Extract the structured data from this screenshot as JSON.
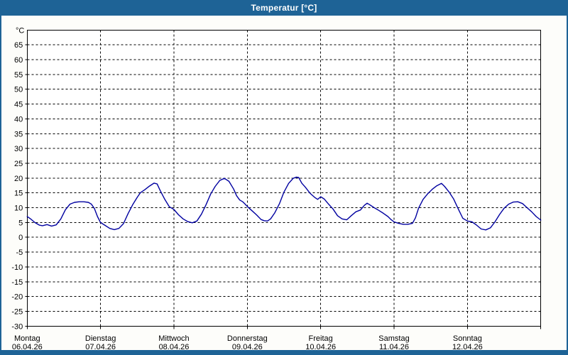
{
  "window": {
    "title": "Temperatur [°C]"
  },
  "colors": {
    "frame": "#1E6396",
    "titlebar": "#1E6396",
    "title_text": "#FFFFFF",
    "window_bg": "#FDFDFA",
    "plot_bg": "#FFFFFF",
    "grid": "#000000",
    "axis": "#000000",
    "line": "#0000A0",
    "label_text": "#000000"
  },
  "chart_data": {
    "type": "line",
    "title": "Temperatur [°C]",
    "ylabel": "°C",
    "xlabel": "",
    "ylim": [
      -30,
      70
    ],
    "yticks": [
      65,
      60,
      55,
      50,
      45,
      40,
      35,
      30,
      25,
      20,
      15,
      10,
      5,
      0,
      -5,
      -10,
      -15,
      -20,
      -25,
      -30
    ],
    "grid": "dashed-horizontal-every-5C-and-vertical-at-day-boundaries",
    "legend": "none",
    "x_days": [
      {
        "name": "Montag",
        "date": "06.04.26"
      },
      {
        "name": "Dienstag",
        "date": "07.04.26"
      },
      {
        "name": "Mittwoch",
        "date": "08.04.26"
      },
      {
        "name": "Donnerstag",
        "date": "09.04.26"
      },
      {
        "name": "Freitag",
        "date": "10.04.26"
      },
      {
        "name": "Samstag",
        "date": "11.04.26"
      },
      {
        "name": "Sonntag",
        "date": "12.04.26"
      }
    ],
    "x_unit": "hours-from-monday-00:00",
    "series": [
      {
        "name": "Temperatur",
        "color": "#0000A0",
        "points": [
          [
            0,
            7.0
          ],
          [
            1,
            6.3
          ],
          [
            2.5,
            5.0
          ],
          [
            4,
            4.1
          ],
          [
            5,
            3.9
          ],
          [
            6.5,
            4.3
          ],
          [
            8,
            3.8
          ],
          [
            9.5,
            4.2
          ],
          [
            11,
            6.2
          ],
          [
            12.5,
            9.3
          ],
          [
            14,
            11.2
          ],
          [
            15.5,
            11.8
          ],
          [
            17,
            12.0
          ],
          [
            18.5,
            12.0
          ],
          [
            20,
            11.8
          ],
          [
            21,
            11.2
          ],
          [
            22,
            9.7
          ],
          [
            23,
            7.0
          ],
          [
            24,
            5.0
          ],
          [
            25.5,
            4.0
          ],
          [
            27,
            3.0
          ],
          [
            28.5,
            2.6
          ],
          [
            30,
            3.0
          ],
          [
            31.5,
            4.6
          ],
          [
            33,
            8.0
          ],
          [
            34.5,
            11.0
          ],
          [
            36,
            13.5
          ],
          [
            37,
            15.0
          ],
          [
            38.5,
            16.1
          ],
          [
            40,
            17.3
          ],
          [
            41.5,
            18.3
          ],
          [
            42.5,
            18.0
          ],
          [
            43.5,
            15.8
          ],
          [
            45,
            12.8
          ],
          [
            46.5,
            10.3
          ],
          [
            48,
            9.4
          ],
          [
            49.5,
            7.6
          ],
          [
            51,
            6.2
          ],
          [
            52.5,
            5.3
          ],
          [
            54,
            4.9
          ],
          [
            55.5,
            5.5
          ],
          [
            57,
            7.8
          ],
          [
            58.5,
            11.0
          ],
          [
            60,
            14.6
          ],
          [
            61.5,
            17.2
          ],
          [
            63,
            19.2
          ],
          [
            64.5,
            19.9
          ],
          [
            66,
            18.9
          ],
          [
            67.5,
            16.3
          ],
          [
            68.5,
            14.0
          ],
          [
            69.5,
            12.6
          ],
          [
            70.5,
            12.0
          ],
          [
            71.2,
            11.3
          ],
          [
            72,
            10.4
          ],
          [
            73.5,
            9.0
          ],
          [
            75,
            7.6
          ],
          [
            76.5,
            6.0
          ],
          [
            77.5,
            5.6
          ],
          [
            78.6,
            5.5
          ],
          [
            79.6,
            6.2
          ],
          [
            81,
            8.3
          ],
          [
            82.5,
            11.3
          ],
          [
            84,
            15.3
          ],
          [
            85.5,
            18.2
          ],
          [
            87,
            19.9
          ],
          [
            88,
            20.3
          ],
          [
            88.8,
            20.2
          ],
          [
            89.8,
            18.3
          ],
          [
            91,
            16.9
          ],
          [
            92.5,
            14.9
          ],
          [
            94,
            13.5
          ],
          [
            95,
            12.8
          ],
          [
            96,
            13.7
          ],
          [
            97.2,
            12.9
          ],
          [
            98.5,
            11.3
          ],
          [
            100,
            9.6
          ],
          [
            101.5,
            7.3
          ],
          [
            103,
            6.2
          ],
          [
            104.5,
            5.9
          ],
          [
            106,
            7.3
          ],
          [
            107.5,
            8.6
          ],
          [
            109,
            9.2
          ],
          [
            110.3,
            10.8
          ],
          [
            111.2,
            11.5
          ],
          [
            112,
            11.0
          ],
          [
            113.5,
            10.0
          ],
          [
            115,
            9.1
          ],
          [
            116.5,
            8.1
          ],
          [
            118,
            7.0
          ],
          [
            119,
            6.0
          ],
          [
            120,
            5.2
          ],
          [
            121.5,
            4.7
          ],
          [
            123,
            4.4
          ],
          [
            124.5,
            4.4
          ],
          [
            126,
            4.7
          ],
          [
            127,
            6.6
          ],
          [
            128,
            9.8
          ],
          [
            129.5,
            12.8
          ],
          [
            131,
            14.7
          ],
          [
            132.5,
            16.2
          ],
          [
            134,
            17.4
          ],
          [
            135.5,
            18.2
          ],
          [
            136.5,
            17.2
          ],
          [
            138,
            15.3
          ],
          [
            139.5,
            12.9
          ],
          [
            141,
            9.6
          ],
          [
            142.5,
            6.4
          ],
          [
            144,
            5.5
          ],
          [
            145.5,
            5.2
          ],
          [
            147,
            4.1
          ],
          [
            148.5,
            2.8
          ],
          [
            150,
            2.5
          ],
          [
            151.5,
            3.2
          ],
          [
            153,
            5.2
          ],
          [
            154.5,
            7.7
          ],
          [
            156,
            9.8
          ],
          [
            157.5,
            11.2
          ],
          [
            159,
            11.9
          ],
          [
            160.5,
            12.0
          ],
          [
            162,
            11.4
          ],
          [
            163.5,
            10.0
          ],
          [
            165,
            8.6
          ],
          [
            166.5,
            7.0
          ],
          [
            168,
            5.8
          ]
        ]
      }
    ]
  }
}
